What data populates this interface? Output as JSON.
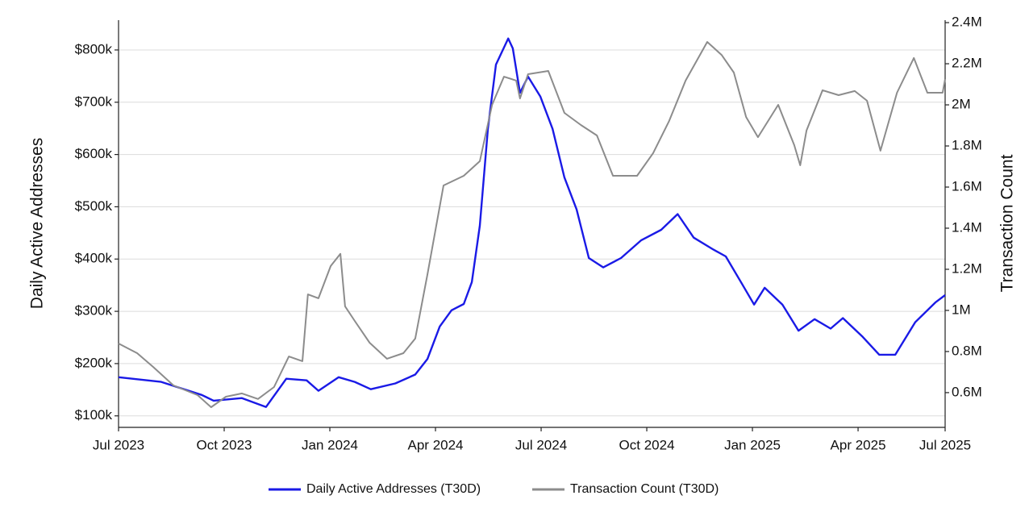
{
  "chart_data": {
    "type": "line",
    "y_label": "Daily Active Addresses",
    "y2_label": "Transaction Count",
    "xlim": [
      2023.5,
      2025.456
    ],
    "xticks": [
      {
        "value": 2023.5,
        "label": "Jul 2023"
      },
      {
        "value": 2023.75,
        "label": "Oct 2023"
      },
      {
        "value": 2024.0,
        "label": "Jan 2024"
      },
      {
        "value": 2024.25,
        "label": "Apr 2024"
      },
      {
        "value": 2024.5,
        "label": "Jul 2024"
      },
      {
        "value": 2024.75,
        "label": "Oct 2024"
      },
      {
        "value": 2025.0,
        "label": "Jan 2025"
      },
      {
        "value": 2025.25,
        "label": "Apr 2025"
      },
      {
        "value": 2025.456,
        "label": "Jul 2025"
      }
    ],
    "ylim": [
      78000,
      857000
    ],
    "yticks": [
      {
        "value": 100000,
        "label": "$100k"
      },
      {
        "value": 200000,
        "label": "$200k"
      },
      {
        "value": 300000,
        "label": "$300k"
      },
      {
        "value": 400000,
        "label": "$400k"
      },
      {
        "value": 500000,
        "label": "$500k"
      },
      {
        "value": 600000,
        "label": "$600k"
      },
      {
        "value": 700000,
        "label": "$700k"
      },
      {
        "value": 800000,
        "label": "$800k"
      }
    ],
    "y2lim": [
      431000,
      2412000
    ],
    "y2ticks": [
      {
        "value": 600000,
        "label": "0.6M"
      },
      {
        "value": 800000,
        "label": "0.8M"
      },
      {
        "value": 1000000,
        "label": "1M"
      },
      {
        "value": 1200000,
        "label": "1.2M"
      },
      {
        "value": 1400000,
        "label": "1.4M"
      },
      {
        "value": 1600000,
        "label": "1.6M"
      },
      {
        "value": 1800000,
        "label": "1.8M"
      },
      {
        "value": 2000000,
        "label": "2M"
      },
      {
        "value": 2200000,
        "label": "2.2M"
      },
      {
        "value": 2400000,
        "label": "2.4M"
      }
    ],
    "grid": true,
    "legend": "bottom",
    "series": [
      {
        "name": "Daily Active Addresses (T30D)",
        "color": "#1a1ae6",
        "axis": "y",
        "x": [
          2023.5,
          2023.601,
          2023.697,
          2023.725,
          2023.792,
          2023.849,
          2023.897,
          2023.945,
          2023.973,
          2024.021,
          2024.059,
          2024.097,
          2024.155,
          2024.202,
          2024.231,
          2024.26,
          2024.288,
          2024.317,
          2024.336,
          2024.355,
          2024.374,
          2024.393,
          2024.422,
          2024.433,
          2024.45,
          2024.469,
          2024.498,
          2024.527,
          2024.555,
          2024.584,
          2024.613,
          2024.647,
          2024.689,
          2024.737,
          2024.784,
          2024.823,
          2024.861,
          2024.908,
          2024.937,
          2024.975,
          2025.004,
          2025.029,
          2025.071,
          2025.109,
          2025.147,
          2025.185,
          2025.214,
          2025.261,
          2025.3,
          2025.338,
          2025.385,
          2025.433,
          2025.456
        ],
        "values": [
          174000,
          165000,
          140000,
          129000,
          134000,
          117000,
          171000,
          168000,
          148000,
          174000,
          165000,
          151000,
          162000,
          179000,
          209000,
          271000,
          302000,
          314000,
          356000,
          464000,
          649000,
          772000,
          822000,
          803000,
          718000,
          749000,
          711000,
          649000,
          556000,
          495000,
          402000,
          384000,
          402000,
          436000,
          456000,
          486000,
          441000,
          418000,
          405000,
          353000,
          313000,
          345000,
          313000,
          263000,
          285000,
          267000,
          287000,
          251000,
          217000,
          217000,
          279000,
          317000,
          331000
        ]
      },
      {
        "name": "Transaction Count (T30D)",
        "color": "#8c8c8c",
        "axis": "y2",
        "x": [
          2023.5,
          2023.544,
          2023.582,
          2023.63,
          2023.687,
          2023.719,
          2023.754,
          2023.792,
          2023.83,
          2023.868,
          2023.903,
          2023.935,
          2023.948,
          2023.973,
          2024.002,
          2024.025,
          2024.036,
          2024.059,
          2024.094,
          2024.135,
          2024.174,
          2024.202,
          2024.231,
          2024.269,
          2024.317,
          2024.355,
          2024.384,
          2024.412,
          2024.441,
          2024.45,
          2024.469,
          2024.517,
          2024.555,
          2024.594,
          2024.632,
          2024.67,
          2024.727,
          2024.765,
          2024.803,
          2024.842,
          2024.893,
          2024.927,
          2024.956,
          2024.985,
          2025.013,
          2025.061,
          2025.099,
          2025.113,
          2025.128,
          2025.166,
          2025.204,
          2025.242,
          2025.271,
          2025.303,
          2025.342,
          2025.382,
          2025.414,
          2025.45,
          2025.456
        ],
        "values": [
          839000,
          792000,
          725000,
          635000,
          588000,
          529000,
          580000,
          596000,
          569000,
          627000,
          776000,
          753000,
          1078000,
          1059000,
          1216000,
          1275000,
          1020000,
          949000,
          843000,
          765000,
          792000,
          863000,
          1176000,
          1608000,
          1655000,
          1726000,
          2000000,
          2137000,
          2118000,
          2031000,
          2149000,
          2165000,
          1961000,
          1902000,
          1851000,
          1655000,
          1655000,
          1765000,
          1922000,
          2118000,
          2306000,
          2243000,
          2157000,
          1941000,
          1843000,
          2000000,
          1804000,
          1706000,
          1875000,
          2071000,
          2047000,
          2067000,
          2020000,
          1777000,
          2059000,
          2228000,
          2059000,
          2059000,
          2126000
        ]
      }
    ]
  }
}
